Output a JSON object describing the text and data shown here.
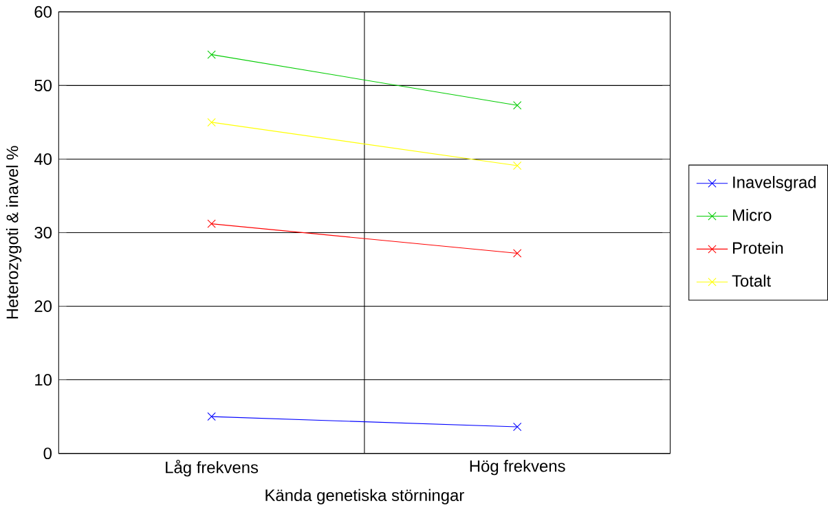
{
  "chart_data": {
    "type": "line",
    "xlabel": "Kända genetiska störningar",
    "ylabel": "Heterozygoti & inavel %",
    "categories": [
      "Låg frekvens",
      "Hög frekvens"
    ],
    "series": [
      {
        "name": "Inavelsgrad",
        "color": "#0000ff",
        "values": [
          5.0,
          3.6
        ]
      },
      {
        "name": "Micro",
        "color": "#00cc00",
        "values": [
          54.2,
          47.3
        ]
      },
      {
        "name": "Protein",
        "color": "#ff0000",
        "values": [
          31.2,
          27.2
        ]
      },
      {
        "name": "Totalt",
        "color": "#ffff00",
        "values": [
          45.0,
          39.1
        ]
      }
    ],
    "ylim": [
      0,
      60
    ],
    "yticks": [
      0,
      10,
      20,
      30,
      40,
      50,
      60
    ],
    "grid": true,
    "legend": "right",
    "marker": "cross",
    "line_style": "solid"
  }
}
